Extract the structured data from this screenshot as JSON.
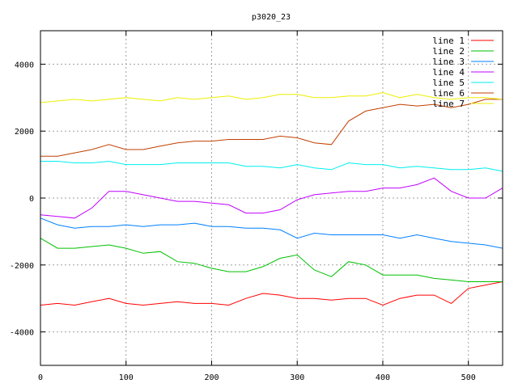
{
  "chart_data": {
    "type": "line",
    "title": "p3020_23",
    "xlabel": "",
    "ylabel": "",
    "xlim": [
      0,
      540
    ],
    "ylim": [
      -5000,
      5000
    ],
    "xticks": [
      0,
      100,
      200,
      300,
      400,
      500
    ],
    "yticks": [
      -4000,
      -2000,
      0,
      2000,
      4000
    ],
    "xtick_labels": [
      "0",
      "100",
      "200",
      "300",
      "400",
      "500"
    ],
    "ytick_labels": [
      "-4000",
      "-2000",
      "0",
      "2000",
      "4000"
    ],
    "grid": true,
    "legend_position": "top-right",
    "x": [
      0,
      20,
      40,
      60,
      80,
      100,
      120,
      140,
      160,
      180,
      200,
      220,
      240,
      260,
      280,
      300,
      320,
      340,
      360,
      380,
      400,
      420,
      440,
      460,
      480,
      500,
      520,
      540
    ],
    "series": [
      {
        "name": "line 1",
        "color": "#ff0000",
        "values": [
          -3200,
          -3150,
          -3200,
          -3100,
          -3000,
          -3150,
          -3200,
          -3150,
          -3100,
          -3150,
          -3150,
          -3200,
          -3000,
          -2850,
          -2900,
          -3000,
          -3000,
          -3050,
          -3000,
          -3000,
          -3200,
          -3000,
          -2900,
          -2900,
          -3150,
          -2700,
          -2600,
          -2500
        ]
      },
      {
        "name": "line 2",
        "color": "#00c000",
        "values": [
          -1200,
          -1500,
          -1500,
          -1450,
          -1400,
          -1500,
          -1650,
          -1600,
          -1900,
          -1950,
          -2100,
          -2200,
          -2200,
          -2050,
          -1800,
          -1700,
          -2150,
          -2350,
          -1900,
          -2000,
          -2300,
          -2300,
          -2300,
          -2400,
          -2450,
          -2500,
          -2500,
          -2500
        ]
      },
      {
        "name": "line 3",
        "color": "#0080ff",
        "values": [
          -600,
          -800,
          -900,
          -850,
          -850,
          -800,
          -850,
          -800,
          -800,
          -750,
          -850,
          -850,
          -900,
          -900,
          -950,
          -1200,
          -1050,
          -1100,
          -1100,
          -1100,
          -1100,
          -1200,
          -1100,
          -1200,
          -1300,
          -1350,
          -1400,
          -1500
        ]
      },
      {
        "name": "line 4",
        "color": "#c000ff",
        "values": [
          -500,
          -550,
          -600,
          -300,
          200,
          200,
          100,
          0,
          -100,
          -100,
          -150,
          -200,
          -450,
          -450,
          -350,
          -50,
          100,
          150,
          200,
          200,
          300,
          300,
          400,
          600,
          200,
          0,
          0,
          300
        ]
      },
      {
        "name": "line 5",
        "color": "#00eeee",
        "values": [
          1100,
          1100,
          1050,
          1050,
          1100,
          1000,
          1000,
          1000,
          1050,
          1050,
          1050,
          1050,
          950,
          950,
          900,
          1000,
          900,
          850,
          1050,
          1000,
          1000,
          900,
          950,
          900,
          850,
          850,
          900,
          800
        ]
      },
      {
        "name": "line 6",
        "color": "#c04000",
        "values": [
          1250,
          1250,
          1350,
          1450,
          1600,
          1450,
          1450,
          1550,
          1650,
          1700,
          1700,
          1750,
          1750,
          1750,
          1850,
          1800,
          1650,
          1600,
          2300,
          2600,
          2700,
          2800,
          2750,
          2800,
          2700,
          2800,
          2950,
          2950
        ]
      },
      {
        "name": "line 7",
        "color": "#eeee00",
        "values": [
          2850,
          2900,
          2950,
          2900,
          2950,
          3000,
          2950,
          2900,
          3000,
          2950,
          3000,
          3050,
          2950,
          3000,
          3100,
          3100,
          3000,
          3000,
          3050,
          3050,
          3150,
          3000,
          3100,
          3000,
          2950,
          3000,
          3000,
          2950
        ]
      }
    ]
  }
}
